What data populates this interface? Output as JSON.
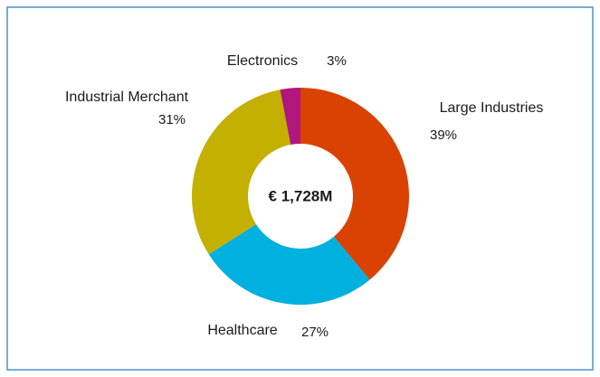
{
  "chart_data": {
    "type": "donut",
    "center_label": "€ 1,728M",
    "categories": [
      "Large Industries",
      "Healthcare",
      "Industrial Merchant",
      "Electronics"
    ],
    "values": [
      39,
      27,
      31,
      3
    ],
    "value_labels": [
      "39%",
      "27%",
      "31%",
      "3%"
    ],
    "colors": [
      "#d94200",
      "#00b0df",
      "#c4b000",
      "#b0177c"
    ]
  }
}
